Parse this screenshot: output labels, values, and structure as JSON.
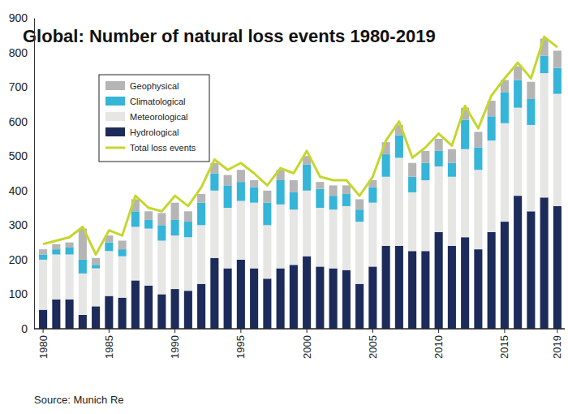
{
  "chart_data": {
    "type": "bar",
    "title": "Global: Number of natural loss events 1980-2019",
    "source": "Source: Munich Re",
    "categories": [
      "1980",
      null,
      null,
      null,
      null,
      "1985",
      null,
      null,
      null,
      null,
      "1990",
      null,
      null,
      null,
      null,
      "1995",
      null,
      null,
      null,
      null,
      "2000",
      null,
      null,
      null,
      null,
      "2005",
      null,
      null,
      null,
      null,
      "2010",
      null,
      null,
      null,
      null,
      "2015",
      null,
      null,
      null,
      "2019"
    ],
    "series": [
      {
        "name": "Hydrological",
        "color": "#1c2b5a",
        "values": [
          55,
          85,
          85,
          40,
          65,
          95,
          90,
          140,
          125,
          100,
          115,
          110,
          130,
          205,
          175,
          200,
          175,
          145,
          175,
          185,
          210,
          180,
          175,
          170,
          130,
          180,
          240,
          240,
          225,
          225,
          280,
          240,
          265,
          230,
          280,
          310,
          385,
          340,
          380,
          355
        ]
      },
      {
        "name": "Meteorological",
        "color": "#e6e6e4",
        "values": [
          145,
          130,
          130,
          120,
          110,
          130,
          120,
          155,
          165,
          155,
          155,
          155,
          170,
          195,
          175,
          170,
          190,
          155,
          185,
          160,
          190,
          170,
          170,
          185,
          180,
          185,
          200,
          255,
          170,
          205,
          190,
          200,
          255,
          230,
          265,
          285,
          255,
          250,
          360,
          325
        ]
      },
      {
        "name": "Climatological",
        "color": "#35b5d8",
        "values": [
          15,
          15,
          20,
          40,
          10,
          25,
          20,
          45,
          25,
          45,
          45,
          45,
          65,
          50,
          65,
          55,
          45,
          65,
          70,
          50,
          75,
          55,
          40,
          35,
          35,
          45,
          65,
          65,
          45,
          50,
          45,
          40,
          85,
          65,
          70,
          90,
          80,
          75,
          50,
          75
        ]
      },
      {
        "name": "Geophysical",
        "color": "#b5b5b5",
        "values": [
          15,
          15,
          15,
          90,
          20,
          20,
          25,
          35,
          25,
          35,
          50,
          30,
          25,
          30,
          30,
          35,
          20,
          35,
          30,
          35,
          25,
          20,
          30,
          25,
          30,
          20,
          35,
          30,
          40,
          35,
          35,
          40,
          35,
          45,
          45,
          35,
          40,
          50,
          50,
          50
        ]
      },
      {
        "name": "Total loss events",
        "type": "line",
        "color": "#c6d630",
        "values": [
          245,
          255,
          265,
          295,
          215,
          285,
          270,
          385,
          350,
          340,
          385,
          355,
          410,
          490,
          460,
          480,
          450,
          415,
          465,
          450,
          515,
          440,
          430,
          430,
          385,
          440,
          545,
          600,
          495,
          525,
          565,
          530,
          645,
          580,
          675,
          725,
          770,
          725,
          845,
          815
        ]
      }
    ],
    "stacked": true,
    "legend": "upper left",
    "ylim": [
      0,
      900
    ],
    "yticks": [
      0,
      100,
      200,
      300,
      400,
      500,
      600,
      700,
      800,
      900
    ],
    "grid": false
  }
}
